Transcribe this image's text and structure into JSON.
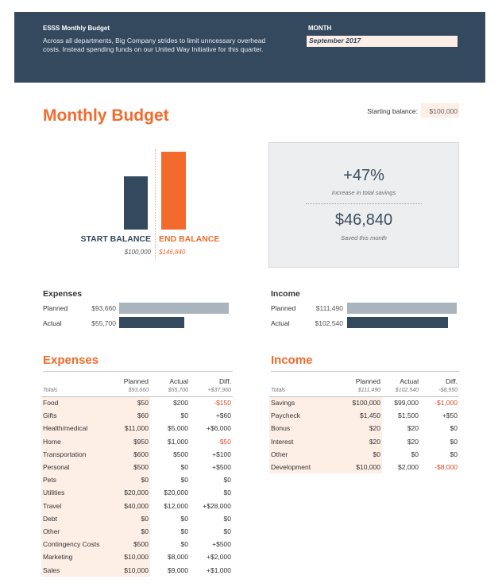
{
  "header": {
    "brand": "ESSS Monthly Budget",
    "description": "Across all departments, Big Company strides to limit unncessary overhead costs. Instead spending funds on our United Way Initiative for this quarter.",
    "month_label": "MONTH",
    "month_value": "September 2017"
  },
  "page_title": "Monthly Budget",
  "starting_balance": {
    "label": "Starting balance:",
    "value": "$100,000"
  },
  "balance_chart": {
    "start_label": "START BALANCE",
    "end_label": "END BALANCE",
    "start_value": "$100,000",
    "end_value": "$146,840",
    "start_amount": 100000,
    "end_amount": 146840
  },
  "savings": {
    "percent": "+47%",
    "percent_caption": "Increase in total savings",
    "amount": "$46,840",
    "amount_caption": "Saved this month"
  },
  "mini": {
    "expenses": {
      "title": "Expenses",
      "planned_label": "Planned",
      "planned_value": "$93,660",
      "actual_label": "Actual",
      "actual_value": "$55,700",
      "planned_amount": 93660,
      "actual_amount": 55700
    },
    "income": {
      "title": "Income",
      "planned_label": "Planned",
      "planned_value": "$111,490",
      "actual_label": "Actual",
      "actual_value": "$102,540",
      "planned_amount": 111490,
      "actual_amount": 102540
    }
  },
  "expenses_table": {
    "title": "Expenses",
    "columns": [
      "Planned",
      "Actual",
      "Diff."
    ],
    "totals": {
      "label": "Totals",
      "planned": "$93,660",
      "actual": "$55,700",
      "diff": "+$37,960"
    },
    "rows": [
      {
        "cat": "Food",
        "planned": "$50",
        "actual": "$200",
        "diff": "-$150",
        "neg": true
      },
      {
        "cat": "Gifts",
        "planned": "$60",
        "actual": "$0",
        "diff": "+$60",
        "neg": false
      },
      {
        "cat": "Health/medical",
        "planned": "$11,000",
        "actual": "$5,000",
        "diff": "+$6,000",
        "neg": false
      },
      {
        "cat": "Home",
        "planned": "$950",
        "actual": "$1,000",
        "diff": "-$50",
        "neg": true
      },
      {
        "cat": "Transportation",
        "planned": "$600",
        "actual": "$500",
        "diff": "+$100",
        "neg": false
      },
      {
        "cat": "Personal",
        "planned": "$500",
        "actual": "$0",
        "diff": "+$500",
        "neg": false
      },
      {
        "cat": "Pets",
        "planned": "$0",
        "actual": "$0",
        "diff": "$0",
        "neg": false
      },
      {
        "cat": "Utilities",
        "planned": "$20,000",
        "actual": "$20,000",
        "diff": "$0",
        "neg": false
      },
      {
        "cat": "Travel",
        "planned": "$40,000",
        "actual": "$12,000",
        "diff": "+$28,000",
        "neg": false
      },
      {
        "cat": "Debt",
        "planned": "$0",
        "actual": "$0",
        "diff": "$0",
        "neg": false
      },
      {
        "cat": "Other",
        "planned": "$0",
        "actual": "$0",
        "diff": "$0",
        "neg": false
      },
      {
        "cat": "Contingency Costs",
        "planned": "$500",
        "actual": "$0",
        "diff": "+$500",
        "neg": false
      },
      {
        "cat": "Marketing",
        "planned": "$10,000",
        "actual": "$8,000",
        "diff": "+$2,000",
        "neg": false
      },
      {
        "cat": "Sales",
        "planned": "$10,000",
        "actual": "$9,000",
        "diff": "+$1,000",
        "neg": false
      }
    ]
  },
  "income_table": {
    "title": "Income",
    "columns": [
      "Planned",
      "Actual",
      "Diff."
    ],
    "totals": {
      "label": "Totals",
      "planned": "$111,490",
      "actual": "$102,540",
      "diff": "-$8,950"
    },
    "rows": [
      {
        "cat": "Savings",
        "planned": "$100,000",
        "actual": "$99,000",
        "diff": "-$1,000",
        "neg": true
      },
      {
        "cat": "Paycheck",
        "planned": "$1,450",
        "actual": "$1,500",
        "diff": "+$50",
        "neg": false
      },
      {
        "cat": "Bonus",
        "planned": "$20",
        "actual": "$20",
        "diff": "$0",
        "neg": false
      },
      {
        "cat": "Interest",
        "planned": "$20",
        "actual": "$20",
        "diff": "$0",
        "neg": false
      },
      {
        "cat": "Other",
        "planned": "$0",
        "actual": "$0",
        "diff": "$0",
        "neg": false
      },
      {
        "cat": "Development",
        "planned": "$10,000",
        "actual": "$2,000",
        "diff": "-$8,000",
        "neg": true
      }
    ]
  },
  "colors": {
    "navy": "#34495e",
    "orange": "#f26b2d",
    "peach": "#fdeee6",
    "negative": "#e04a2b"
  }
}
